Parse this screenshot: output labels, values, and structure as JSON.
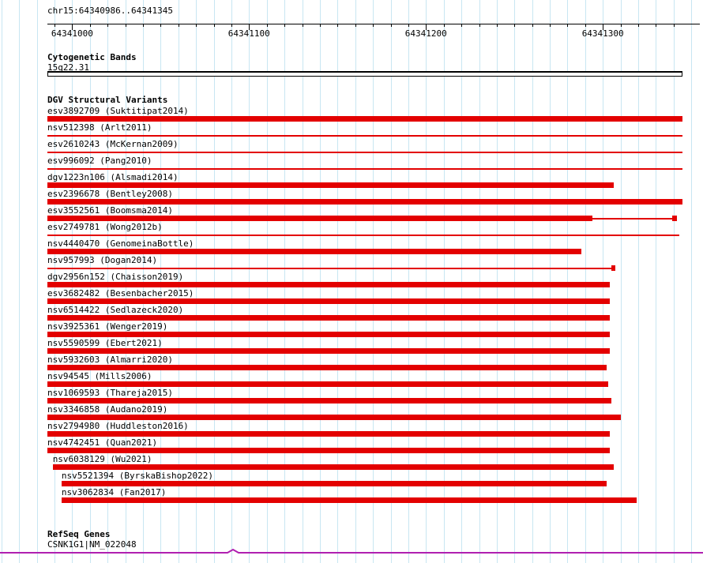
{
  "colors": {
    "variant_red": "#e30000",
    "gene_purple": "#b020b0",
    "grid_blue": "#c8e6f2",
    "axis_black": "#000000"
  },
  "chart_data": {
    "type": "bar",
    "title": "chr15:64340986..64341345",
    "x_range": [
      64340986,
      64341345
    ],
    "x_ticks": [
      64341000,
      64341100,
      64341200,
      64341300
    ],
    "minor_tick_interval_bp": 10,
    "tracks": {
      "cytobands": {
        "title": "Cytogenetic Bands",
        "bands": [
          {
            "label": "15q22.31",
            "start": 64340986,
            "end": 64341345
          }
        ]
      },
      "dgv": {
        "title": "DGV Structural Variants",
        "variants": [
          {
            "label": "esv3892709 (Suktitipat2014)",
            "segments": [
              {
                "start": 64340986,
                "end": 64341345,
                "style": "thick"
              }
            ]
          },
          {
            "label": "nsv512398 (Arlt2011)",
            "segments": [
              {
                "start": 64340986,
                "end": 64341345,
                "style": "thin"
              }
            ]
          },
          {
            "label": "esv2610243 (McKernan2009)",
            "segments": [
              {
                "start": 64340986,
                "end": 64341345,
                "style": "thin"
              }
            ]
          },
          {
            "label": "esv996092 (Pang2010)",
            "segments": [
              {
                "start": 64340986,
                "end": 64341345,
                "style": "thin"
              }
            ]
          },
          {
            "label": "dgv1223n106 (Alsmadi2014)",
            "segments": [
              {
                "start": 64340986,
                "end": 64341306,
                "style": "thick"
              }
            ]
          },
          {
            "label": "esv2396678 (Bentley2008)",
            "segments": [
              {
                "start": 64340986,
                "end": 64341345,
                "style": "thick"
              }
            ]
          },
          {
            "label": "esv3552561 (Boomsma2014)",
            "segments": [
              {
                "start": 64340986,
                "end": 64341294,
                "style": "thick"
              },
              {
                "start": 64341294,
                "end": 64341339,
                "style": "thin"
              },
              {
                "start": 64341339,
                "end": 64341342,
                "style": "thick"
              }
            ]
          },
          {
            "label": "esv2749781 (Wong2012b)",
            "segments": [
              {
                "start": 64340986,
                "end": 64341343,
                "style": "thin"
              }
            ]
          },
          {
            "label": "nsv4440470 (GenomeinaBottle)",
            "segments": [
              {
                "start": 64340986,
                "end": 64341288,
                "style": "thick"
              }
            ]
          },
          {
            "label": "nsv957993 (Dogan2014)",
            "segments": [
              {
                "start": 64340986,
                "end": 64341305,
                "style": "thin"
              },
              {
                "start": 64341305,
                "end": 64341307,
                "style": "thick"
              }
            ]
          },
          {
            "label": "dgv2956n152 (Chaisson2019)",
            "segments": [
              {
                "start": 64340986,
                "end": 64341304,
                "style": "thick"
              }
            ]
          },
          {
            "label": "esv3682482 (Besenbacher2015)",
            "segments": [
              {
                "start": 64340986,
                "end": 64341304,
                "style": "thick"
              }
            ]
          },
          {
            "label": "nsv6514422 (Sedlazeck2020)",
            "segments": [
              {
                "start": 64340986,
                "end": 64341304,
                "style": "thick"
              }
            ]
          },
          {
            "label": "nsv3925361 (Wenger2019)",
            "segments": [
              {
                "start": 64340986,
                "end": 64341304,
                "style": "thick"
              }
            ]
          },
          {
            "label": "nsv5590599 (Ebert2021)",
            "segments": [
              {
                "start": 64340986,
                "end": 64341304,
                "style": "thick"
              }
            ]
          },
          {
            "label": "nsv5932603 (Almarri2020)",
            "segments": [
              {
                "start": 64340986,
                "end": 64341302,
                "style": "thick"
              }
            ]
          },
          {
            "label": "nsv94545 (Mills2006)",
            "segments": [
              {
                "start": 64340986,
                "end": 64341303,
                "style": "thick"
              }
            ]
          },
          {
            "label": "nsv1069593 (Thareja2015)",
            "segments": [
              {
                "start": 64340986,
                "end": 64341305,
                "style": "thick"
              }
            ]
          },
          {
            "label": "nsv3346858 (Audano2019)",
            "segments": [
              {
                "start": 64340986,
                "end": 64341310,
                "style": "thick"
              }
            ]
          },
          {
            "label": "nsv2794980 (Huddleston2016)",
            "segments": [
              {
                "start": 64340986,
                "end": 64341304,
                "style": "thick"
              }
            ]
          },
          {
            "label": "nsv4742451 (Quan2021)",
            "segments": [
              {
                "start": 64340986,
                "end": 64341304,
                "style": "thick"
              }
            ]
          },
          {
            "label": "nsv6038129 (Wu2021)",
            "segments": [
              {
                "start": 64340989,
                "end": 64341306,
                "style": "thick"
              }
            ]
          },
          {
            "label": "nsv5521394 (ByrskaBishop2022)",
            "segments": [
              {
                "start": 64340994,
                "end": 64341302,
                "style": "thick"
              }
            ]
          },
          {
            "label": "nsv3062834 (Fan2017)",
            "segments": [
              {
                "start": 64340994,
                "end": 64341319,
                "style": "thick"
              }
            ]
          }
        ]
      },
      "refseq": {
        "title": "RefSeq Genes",
        "genes": [
          {
            "label": "CSNK1G1|NM_022048",
            "start": 64340986,
            "end": 64341345
          }
        ]
      }
    }
  }
}
